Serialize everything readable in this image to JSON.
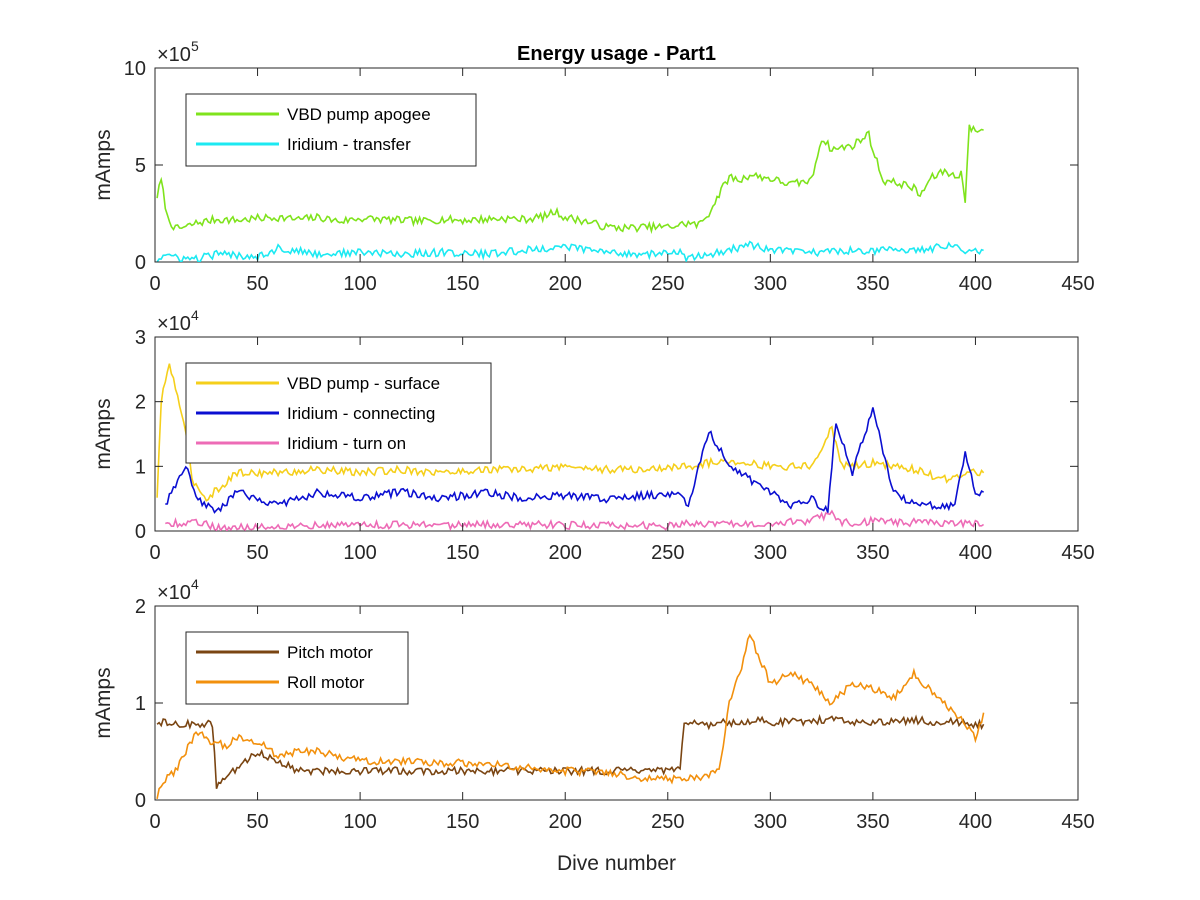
{
  "chart_data": [
    {
      "type": "line",
      "title": "Energy usage - Part1",
      "ylabel": "mAmps",
      "xlabel": "",
      "xlim": [
        0,
        450
      ],
      "ylim": [
        0,
        1000000
      ],
      "xticks": [
        0,
        50,
        100,
        150,
        200,
        250,
        300,
        350,
        400,
        450
      ],
      "yticks": [
        0,
        500000,
        1000000
      ],
      "ytick_labels": [
        "0",
        "5",
        "10"
      ],
      "y_exponent": {
        "base": "×10",
        "power": "5"
      },
      "legend_position": "top-left",
      "series": [
        {
          "name": "VBD pump apogee",
          "color": "#7fe31c",
          "points": [
            [
              1,
              340000
            ],
            [
              3,
              420000
            ],
            [
              6,
              230000
            ],
            [
              10,
              170000
            ],
            [
              15,
              180000
            ],
            [
              20,
              200000
            ],
            [
              30,
              220000
            ],
            [
              40,
              215000
            ],
            [
              50,
              225000
            ],
            [
              60,
              230000
            ],
            [
              70,
              220000
            ],
            [
              80,
              230000
            ],
            [
              90,
              210000
            ],
            [
              100,
              225000
            ],
            [
              110,
              220000
            ],
            [
              120,
              215000
            ],
            [
              130,
              210000
            ],
            [
              140,
              220000
            ],
            [
              150,
              215000
            ],
            [
              160,
              220000
            ],
            [
              170,
              225000
            ],
            [
              180,
              220000
            ],
            [
              190,
              235000
            ],
            [
              195,
              260000
            ],
            [
              200,
              230000
            ],
            [
              210,
              210000
            ],
            [
              220,
              180000
            ],
            [
              230,
              175000
            ],
            [
              240,
              180000
            ],
            [
              250,
              180000
            ],
            [
              260,
              200000
            ],
            [
              265,
              190000
            ],
            [
              270,
              250000
            ],
            [
              275,
              350000
            ],
            [
              280,
              440000
            ],
            [
              285,
              420000
            ],
            [
              290,
              450000
            ],
            [
              300,
              430000
            ],
            [
              310,
              400000
            ],
            [
              320,
              420000
            ],
            [
              325,
              640000
            ],
            [
              330,
              580000
            ],
            [
              340,
              600000
            ],
            [
              348,
              660000
            ],
            [
              350,
              580000
            ],
            [
              355,
              420000
            ],
            [
              365,
              400000
            ],
            [
              370,
              380000
            ],
            [
              373,
              340000
            ],
            [
              378,
              430000
            ],
            [
              385,
              470000
            ],
            [
              390,
              440000
            ],
            [
              393,
              460000
            ],
            [
              395,
              320000
            ],
            [
              397,
              690000
            ],
            [
              400,
              680000
            ],
            [
              404,
              680000
            ]
          ]
        },
        {
          "name": "Iridium - transfer",
          "color": "#1ce9f2",
          "points": [
            [
              1,
              10000
            ],
            [
              5,
              40000
            ],
            [
              10,
              20000
            ],
            [
              20,
              15000
            ],
            [
              30,
              40000
            ],
            [
              50,
              30000
            ],
            [
              60,
              70000
            ],
            [
              80,
              40000
            ],
            [
              100,
              50000
            ],
            [
              120,
              40000
            ],
            [
              140,
              50000
            ],
            [
              160,
              40000
            ],
            [
              180,
              60000
            ],
            [
              200,
              80000
            ],
            [
              220,
              50000
            ],
            [
              240,
              40000
            ],
            [
              256,
              50000
            ],
            [
              260,
              15000
            ],
            [
              270,
              40000
            ],
            [
              280,
              60000
            ],
            [
              290,
              90000
            ],
            [
              300,
              60000
            ],
            [
              320,
              50000
            ],
            [
              340,
              60000
            ],
            [
              360,
              60000
            ],
            [
              380,
              70000
            ],
            [
              390,
              100000
            ],
            [
              395,
              60000
            ],
            [
              404,
              60000
            ]
          ]
        }
      ]
    },
    {
      "type": "line",
      "title": "",
      "ylabel": "mAmps",
      "xlabel": "",
      "xlim": [
        0,
        450
      ],
      "ylim": [
        0,
        30000
      ],
      "xticks": [
        0,
        50,
        100,
        150,
        200,
        250,
        300,
        350,
        400,
        450
      ],
      "yticks": [
        0,
        10000,
        20000,
        30000
      ],
      "ytick_labels": [
        "0",
        "1",
        "2",
        "3"
      ],
      "y_exponent": {
        "base": "×10",
        "power": "4"
      },
      "legend_position": "top-left",
      "series": [
        {
          "name": "VBD pump - surface",
          "color": "#f5cf1b",
          "points": [
            [
              1,
              5000
            ],
            [
              3,
              20000
            ],
            [
              7,
              26000
            ],
            [
              10,
              22000
            ],
            [
              14,
              17000
            ],
            [
              18,
              8000
            ],
            [
              25,
              5000
            ],
            [
              40,
              9000
            ],
            [
              60,
              9000
            ],
            [
              80,
              9500
            ],
            [
              100,
              9000
            ],
            [
              120,
              9500
            ],
            [
              140,
              9000
            ],
            [
              160,
              9500
            ],
            [
              180,
              9500
            ],
            [
              200,
              10000
            ],
            [
              220,
              9500
            ],
            [
              240,
              9500
            ],
            [
              256,
              10000
            ],
            [
              260,
              10000
            ],
            [
              280,
              11000
            ],
            [
              300,
              10000
            ],
            [
              320,
              10000
            ],
            [
              330,
              16000
            ],
            [
              335,
              10000
            ],
            [
              350,
              10500
            ],
            [
              370,
              9500
            ],
            [
              385,
              8000
            ],
            [
              395,
              9000
            ],
            [
              404,
              9000
            ]
          ]
        },
        {
          "name": "Iridium - connecting",
          "color": "#0b0fd1",
          "points": [
            [
              5,
              4000
            ],
            [
              10,
              7000
            ],
            [
              15,
              10000
            ],
            [
              20,
              5000
            ],
            [
              30,
              3000
            ],
            [
              40,
              6000
            ],
            [
              60,
              4000
            ],
            [
              80,
              6000
            ],
            [
              100,
              5000
            ],
            [
              120,
              6000
            ],
            [
              140,
              5000
            ],
            [
              160,
              6000
            ],
            [
              180,
              5000
            ],
            [
              200,
              5500
            ],
            [
              220,
              5000
            ],
            [
              240,
              5500
            ],
            [
              256,
              6000
            ],
            [
              260,
              4000
            ],
            [
              270,
              15500
            ],
            [
              280,
              10000
            ],
            [
              290,
              8000
            ],
            [
              300,
              6000
            ],
            [
              310,
              4000
            ],
            [
              320,
              5000
            ],
            [
              328,
              3000
            ],
            [
              332,
              17000
            ],
            [
              340,
              9000
            ],
            [
              350,
              19000
            ],
            [
              360,
              6000
            ],
            [
              370,
              4000
            ],
            [
              380,
              4000
            ],
            [
              390,
              4000
            ],
            [
              395,
              12000
            ],
            [
              400,
              6000
            ],
            [
              404,
              6000
            ]
          ]
        },
        {
          "name": "Iridium - turn on",
          "color": "#ed6bb6",
          "points": [
            [
              5,
              1000
            ],
            [
              20,
              1500
            ],
            [
              30,
              500
            ],
            [
              60,
              800
            ],
            [
              100,
              1000
            ],
            [
              140,
              900
            ],
            [
              180,
              1000
            ],
            [
              220,
              800
            ],
            [
              256,
              800
            ],
            [
              260,
              1200
            ],
            [
              300,
              1300
            ],
            [
              320,
              1500
            ],
            [
              330,
              3000
            ],
            [
              335,
              1200
            ],
            [
              350,
              1500
            ],
            [
              380,
              1200
            ],
            [
              404,
              1000
            ]
          ]
        }
      ]
    },
    {
      "type": "line",
      "title": "",
      "ylabel": "mAmps",
      "xlabel": "Dive number",
      "xlim": [
        0,
        450
      ],
      "ylim": [
        0,
        20000
      ],
      "xticks": [
        0,
        50,
        100,
        150,
        200,
        250,
        300,
        350,
        400,
        450
      ],
      "yticks": [
        0,
        10000,
        20000
      ],
      "ytick_labels": [
        "0",
        "1",
        "2"
      ],
      "y_exponent": {
        "base": "×10",
        "power": "4"
      },
      "legend_position": "top-left",
      "series": [
        {
          "name": "Pitch motor",
          "color": "#7a4512",
          "points": [
            [
              1,
              8200
            ],
            [
              5,
              7900
            ],
            [
              10,
              7800
            ],
            [
              28,
              7800
            ],
            [
              30,
              1500
            ],
            [
              50,
              5000
            ],
            [
              70,
              3000
            ],
            [
              100,
              3000
            ],
            [
              150,
              3000
            ],
            [
              200,
              3000
            ],
            [
              250,
              3000
            ],
            [
              256,
              3000
            ],
            [
              258,
              8000
            ],
            [
              270,
              7800
            ],
            [
              290,
              8200
            ],
            [
              310,
              8000
            ],
            [
              330,
              8300
            ],
            [
              350,
              8000
            ],
            [
              370,
              8200
            ],
            [
              390,
              8000
            ],
            [
              400,
              7800
            ],
            [
              404,
              7800
            ]
          ]
        },
        {
          "name": "Roll motor",
          "color": "#f2900d",
          "points": [
            [
              1,
              500
            ],
            [
              5,
              2000
            ],
            [
              10,
              3000
            ],
            [
              15,
              5000
            ],
            [
              20,
              7000
            ],
            [
              28,
              6000
            ],
            [
              35,
              5500
            ],
            [
              40,
              6500
            ],
            [
              50,
              6000
            ],
            [
              60,
              4500
            ],
            [
              70,
              5000
            ],
            [
              80,
              5000
            ],
            [
              100,
              4000
            ],
            [
              120,
              4000
            ],
            [
              140,
              3800
            ],
            [
              160,
              3800
            ],
            [
              180,
              3300
            ],
            [
              200,
              3000
            ],
            [
              220,
              2800
            ],
            [
              240,
              2200
            ],
            [
              250,
              2200
            ],
            [
              256,
              2000
            ],
            [
              270,
              2500
            ],
            [
              275,
              3000
            ],
            [
              280,
              10000
            ],
            [
              285,
              13000
            ],
            [
              290,
              17000
            ],
            [
              300,
              12000
            ],
            [
              310,
              13000
            ],
            [
              320,
              12000
            ],
            [
              330,
              10000
            ],
            [
              340,
              12000
            ],
            [
              350,
              11500
            ],
            [
              360,
              10500
            ],
            [
              370,
              13000
            ],
            [
              380,
              11000
            ],
            [
              390,
              9000
            ],
            [
              400,
              6500
            ],
            [
              404,
              9000
            ]
          ]
        }
      ]
    }
  ]
}
